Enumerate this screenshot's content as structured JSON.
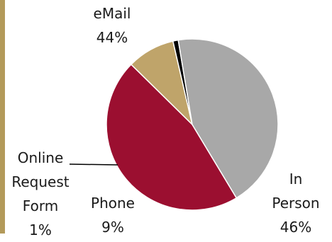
{
  "chart_data": {
    "type": "pie",
    "title": "",
    "slices": [
      {
        "label": "In Person",
        "value": 46,
        "value_label": "46%",
        "color": "#9b0f30"
      },
      {
        "label": "Phone",
        "value": 9,
        "value_label": "9%",
        "color": "#bfa46a"
      },
      {
        "label": "Online Request Form",
        "value": 1,
        "value_label": "1%",
        "color": "#000000"
      },
      {
        "label": "eMail",
        "value": 44,
        "value_label": "44%",
        "color": "#a8a8a8"
      }
    ]
  },
  "labels": {
    "email": {
      "name": "eMail",
      "pct": "44%"
    },
    "online": {
      "line1": "Online",
      "line2": "Request",
      "line3": "Form",
      "pct": "1%"
    },
    "phone": {
      "name": "Phone",
      "pct": "9%"
    },
    "inperson": {
      "line1": "In",
      "line2": "Person",
      "pct": "46%"
    }
  },
  "accent_color": "#b39a5a"
}
